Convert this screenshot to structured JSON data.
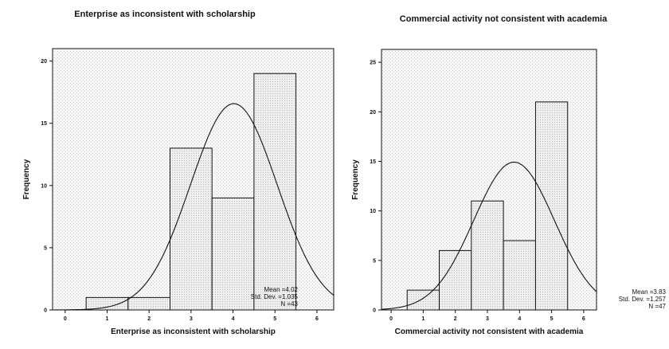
{
  "chart_data": [
    {
      "type": "bar",
      "title": "Enterprise as inconsistent with scholarship",
      "xlabel": "Enterprise as inconsistent with scholarship",
      "ylabel": "Frequency",
      "x_ticks": [
        0,
        1,
        2,
        3,
        4,
        5,
        6
      ],
      "y_ticks": [
        0,
        5,
        10,
        15,
        20
      ],
      "xlim": [
        -0.3,
        6.4
      ],
      "ylim": [
        0,
        21
      ],
      "bins": [
        {
          "x0": 0.5,
          "x1": 1.5,
          "value": 1
        },
        {
          "x0": 1.5,
          "x1": 2.5,
          "value": 1
        },
        {
          "x0": 2.5,
          "x1": 3.5,
          "value": 13
        },
        {
          "x0": 3.5,
          "x1": 4.5,
          "value": 9
        },
        {
          "x0": 4.5,
          "x1": 5.5,
          "value": 19
        }
      ],
      "normal_curve": {
        "mean": 4.02,
        "sd": 1.035,
        "n": 43
      },
      "stats": [
        "Mean =4.02",
        "Std. Dev. =1.035",
        "N =43"
      ]
    },
    {
      "type": "bar",
      "title": "Commercial activity not consistent with academia",
      "xlabel": "Commercial activity not consistent with academia",
      "ylabel": "Frequency",
      "x_ticks": [
        0,
        1,
        2,
        3,
        4,
        5,
        6
      ],
      "y_ticks": [
        0,
        5,
        10,
        15,
        20,
        25
      ],
      "xlim": [
        -0.3,
        6.4
      ],
      "ylim": [
        0,
        26.3
      ],
      "bins": [
        {
          "x0": 0.5,
          "x1": 1.5,
          "value": 2
        },
        {
          "x0": 1.5,
          "x1": 2.5,
          "value": 6
        },
        {
          "x0": 2.5,
          "x1": 3.5,
          "value": 11
        },
        {
          "x0": 3.5,
          "x1": 4.5,
          "value": 7
        },
        {
          "x0": 4.5,
          "x1": 5.5,
          "value": 21
        }
      ],
      "normal_curve": {
        "mean": 3.83,
        "sd": 1.257,
        "n": 47
      },
      "stats": [
        "Mean =3.83",
        "Std. Dev. =1.257",
        "N =47"
      ]
    }
  ]
}
